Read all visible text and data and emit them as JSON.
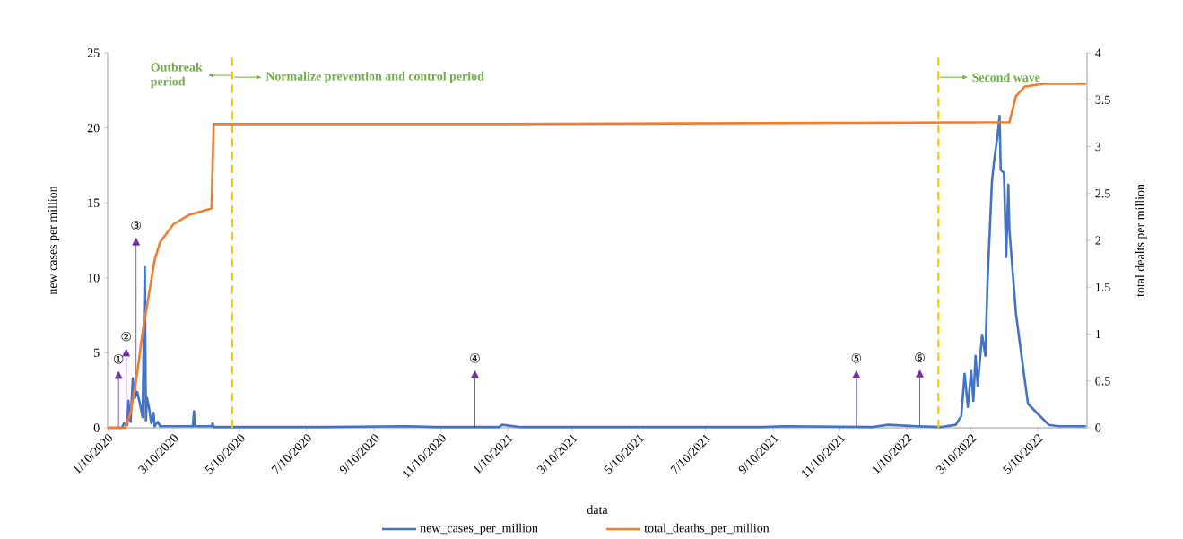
{
  "chart_data": {
    "type": "line",
    "xlabel": "data",
    "ylabel": "new cases per million",
    "y2label": "total dealts per million",
    "xlim": [
      "2020-01-10",
      "2022-06-24"
    ],
    "xticks": [
      {
        "value": "2020-01-10",
        "label": "1/10/2020"
      },
      {
        "value": "2020-03-10",
        "label": "3/10/2020"
      },
      {
        "value": "2020-05-10",
        "label": "5/10/2020"
      },
      {
        "value": "2020-07-10",
        "label": "7/10/2020"
      },
      {
        "value": "2020-09-10",
        "label": "9/10/2020"
      },
      {
        "value": "2020-11-10",
        "label": "11/10/2020"
      },
      {
        "value": "2021-01-10",
        "label": "1/10/2021"
      },
      {
        "value": "2021-03-10",
        "label": "3/10/2021"
      },
      {
        "value": "2021-05-10",
        "label": "5/10/2021"
      },
      {
        "value": "2021-07-10",
        "label": "7/10/2021"
      },
      {
        "value": "2021-09-10",
        "label": "9/10/2021"
      },
      {
        "value": "2021-11-10",
        "label": "11/10/2021"
      },
      {
        "value": "2022-01-10",
        "label": "1/10/2022"
      },
      {
        "value": "2022-03-10",
        "label": "3/10/2022"
      },
      {
        "value": "2022-05-10",
        "label": "5/10/2022"
      }
    ],
    "ylim": [
      0,
      25
    ],
    "yticks": [
      0,
      5,
      10,
      15,
      20,
      25
    ],
    "y2lim": [
      0,
      4
    ],
    "y2ticks": [
      0,
      0.5,
      1,
      1.5,
      2,
      2.5,
      3,
      3.5,
      4
    ],
    "legend": "bottom",
    "series": [
      {
        "name": "new_cases_per_million",
        "color": "#4472c4",
        "x": [
          "2020-01-10",
          "2020-01-23",
          "2020-01-25",
          "2020-01-28",
          "2020-01-29",
          "2020-01-31",
          "2020-02-02",
          "2020-02-04",
          "2020-02-06",
          "2020-02-08",
          "2020-02-11",
          "2020-02-13",
          "2020-02-14",
          "2020-02-15",
          "2020-02-17",
          "2020-02-19",
          "2020-02-21",
          "2020-02-22",
          "2020-02-25",
          "2020-02-27",
          "2020-03-10",
          "2020-03-28",
          "2020-03-29",
          "2020-03-30",
          "2020-04-14",
          "2020-04-15",
          "2020-04-16",
          "2020-07-27",
          "2020-10-10",
          "2020-11-04",
          "2021-01-02",
          "2021-01-05",
          "2021-01-22",
          "2021-08-31",
          "2021-09-20",
          "2021-12-09",
          "2021-12-24",
          "2022-01-19",
          "2022-02-10",
          "2022-02-24",
          "2022-03-01",
          "2022-03-04",
          "2022-03-07",
          "2022-03-10",
          "2022-03-12",
          "2022-03-14",
          "2022-03-16",
          "2022-03-20",
          "2022-03-23",
          "2022-03-25",
          "2022-03-29",
          "2022-03-31",
          "2022-04-03",
          "2022-04-05",
          "2022-04-06",
          "2022-04-09",
          "2022-04-11",
          "2022-04-13",
          "2022-04-14",
          "2022-04-20",
          "2022-04-28",
          "2022-05-01",
          "2022-05-09",
          "2022-05-20",
          "2022-05-29",
          "2022-06-23"
        ],
        "values": [
          0,
          0,
          0.3,
          0.2,
          1.8,
          0.4,
          3.3,
          2.0,
          2.4,
          1.8,
          0.7,
          10.7,
          0.5,
          2.0,
          1.3,
          0.3,
          1.0,
          0.1,
          0.4,
          0.1,
          0.1,
          0.1,
          1.1,
          0.1,
          0.1,
          0.3,
          0.05,
          0.05,
          0.1,
          0.05,
          0.05,
          0.2,
          0.05,
          0.05,
          0.1,
          0.05,
          0.2,
          0.1,
          0.05,
          0.2,
          0.8,
          3.6,
          1.4,
          3.8,
          1.8,
          4.8,
          2.8,
          6.2,
          4.8,
          9.8,
          16.4,
          17.8,
          19.4,
          20.8,
          17.2,
          17.0,
          11.4,
          16.2,
          13.2,
          7.6,
          3.2,
          1.6,
          1.0,
          0.2,
          0.1,
          0.1
        ]
      },
      {
        "name": "total_deaths_per_million",
        "color": "#ed7d31",
        "axis": "y2",
        "x": [
          "2020-01-10",
          "2020-01-26",
          "2020-01-31",
          "2020-02-06",
          "2020-02-11",
          "2020-02-17",
          "2020-02-22",
          "2020-02-27",
          "2020-03-10",
          "2020-03-24",
          "2020-04-14",
          "2020-04-16",
          "2021-01-01",
          "2022-04-14",
          "2022-04-20",
          "2022-04-28",
          "2022-05-15",
          "2022-06-23"
        ],
        "values": [
          0,
          0,
          0.16,
          0.58,
          1.02,
          1.44,
          1.79,
          1.98,
          2.17,
          2.27,
          2.34,
          3.24,
          3.24,
          3.26,
          3.54,
          3.64,
          3.67,
          3.67
        ]
      }
    ],
    "ref_lines": [
      {
        "axis": "x",
        "value": "2020-05-03",
        "label": "Normalize prevention and control period",
        "color": "#ffc000",
        "line_style": "dashed"
      },
      {
        "axis": "x",
        "value": "2022-02-08",
        "label": "Second wave",
        "color": "#ffc000",
        "line_style": "dashed"
      }
    ],
    "annotations": [
      {
        "text": "Outbreak period",
        "x": "2020-05-03",
        "y": 23.5
      },
      {
        "text": "①",
        "x": "2020-01-20",
        "y": 0
      },
      {
        "text": "②",
        "x": "2020-01-27",
        "y": 0.2
      },
      {
        "text": "③",
        "x": "2020-02-05",
        "y": 2.2
      },
      {
        "text": "④",
        "x": "2020-12-11",
        "y": 0.05
      },
      {
        "text": "⑤",
        "x": "2021-11-25",
        "y": 0.05
      },
      {
        "text": "⑥",
        "x": "2022-01-22",
        "y": 0.1
      }
    ]
  }
}
